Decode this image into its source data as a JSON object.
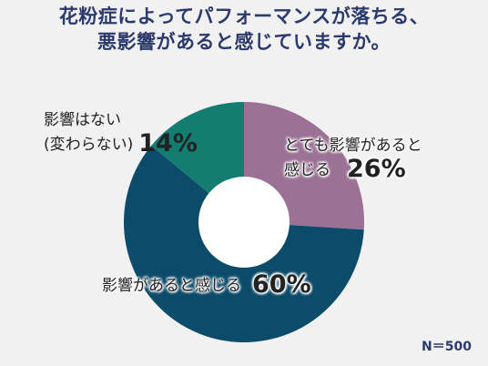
{
  "title_line1": "花粉症によってパフォーマンスが落ちる、",
  "title_line2": "悪影響があると感じていますか。",
  "n_label": "N＝500",
  "labels": {
    "no_effect_line1": "影響はない",
    "no_effect_line2": "(変わらない)",
    "no_effect_pct": "14%",
    "slight_line1": "とても影響があると",
    "slight_line2": "感じる",
    "slight_pct": "26%",
    "yes_line1": "影響があると感じる",
    "yes_pct": "60%"
  },
  "colors": {
    "title": "#2b3a6b",
    "slice_yes": "#0d4b6b",
    "slice_strong": "#9c7196",
    "slice_none": "#137d72",
    "background": "#f1f1f1"
  },
  "chart_data": {
    "type": "pie",
    "donut": true,
    "title": "花粉症によってパフォーマンスが落ちる、悪影響があると感じていますか。",
    "slices": [
      {
        "label": "とても影響があると感じる",
        "value": 26
      },
      {
        "label": "影響があると感じる",
        "value": 60
      },
      {
        "label": "影響はない(変わらない)",
        "value": 14
      }
    ],
    "n": 500
  }
}
